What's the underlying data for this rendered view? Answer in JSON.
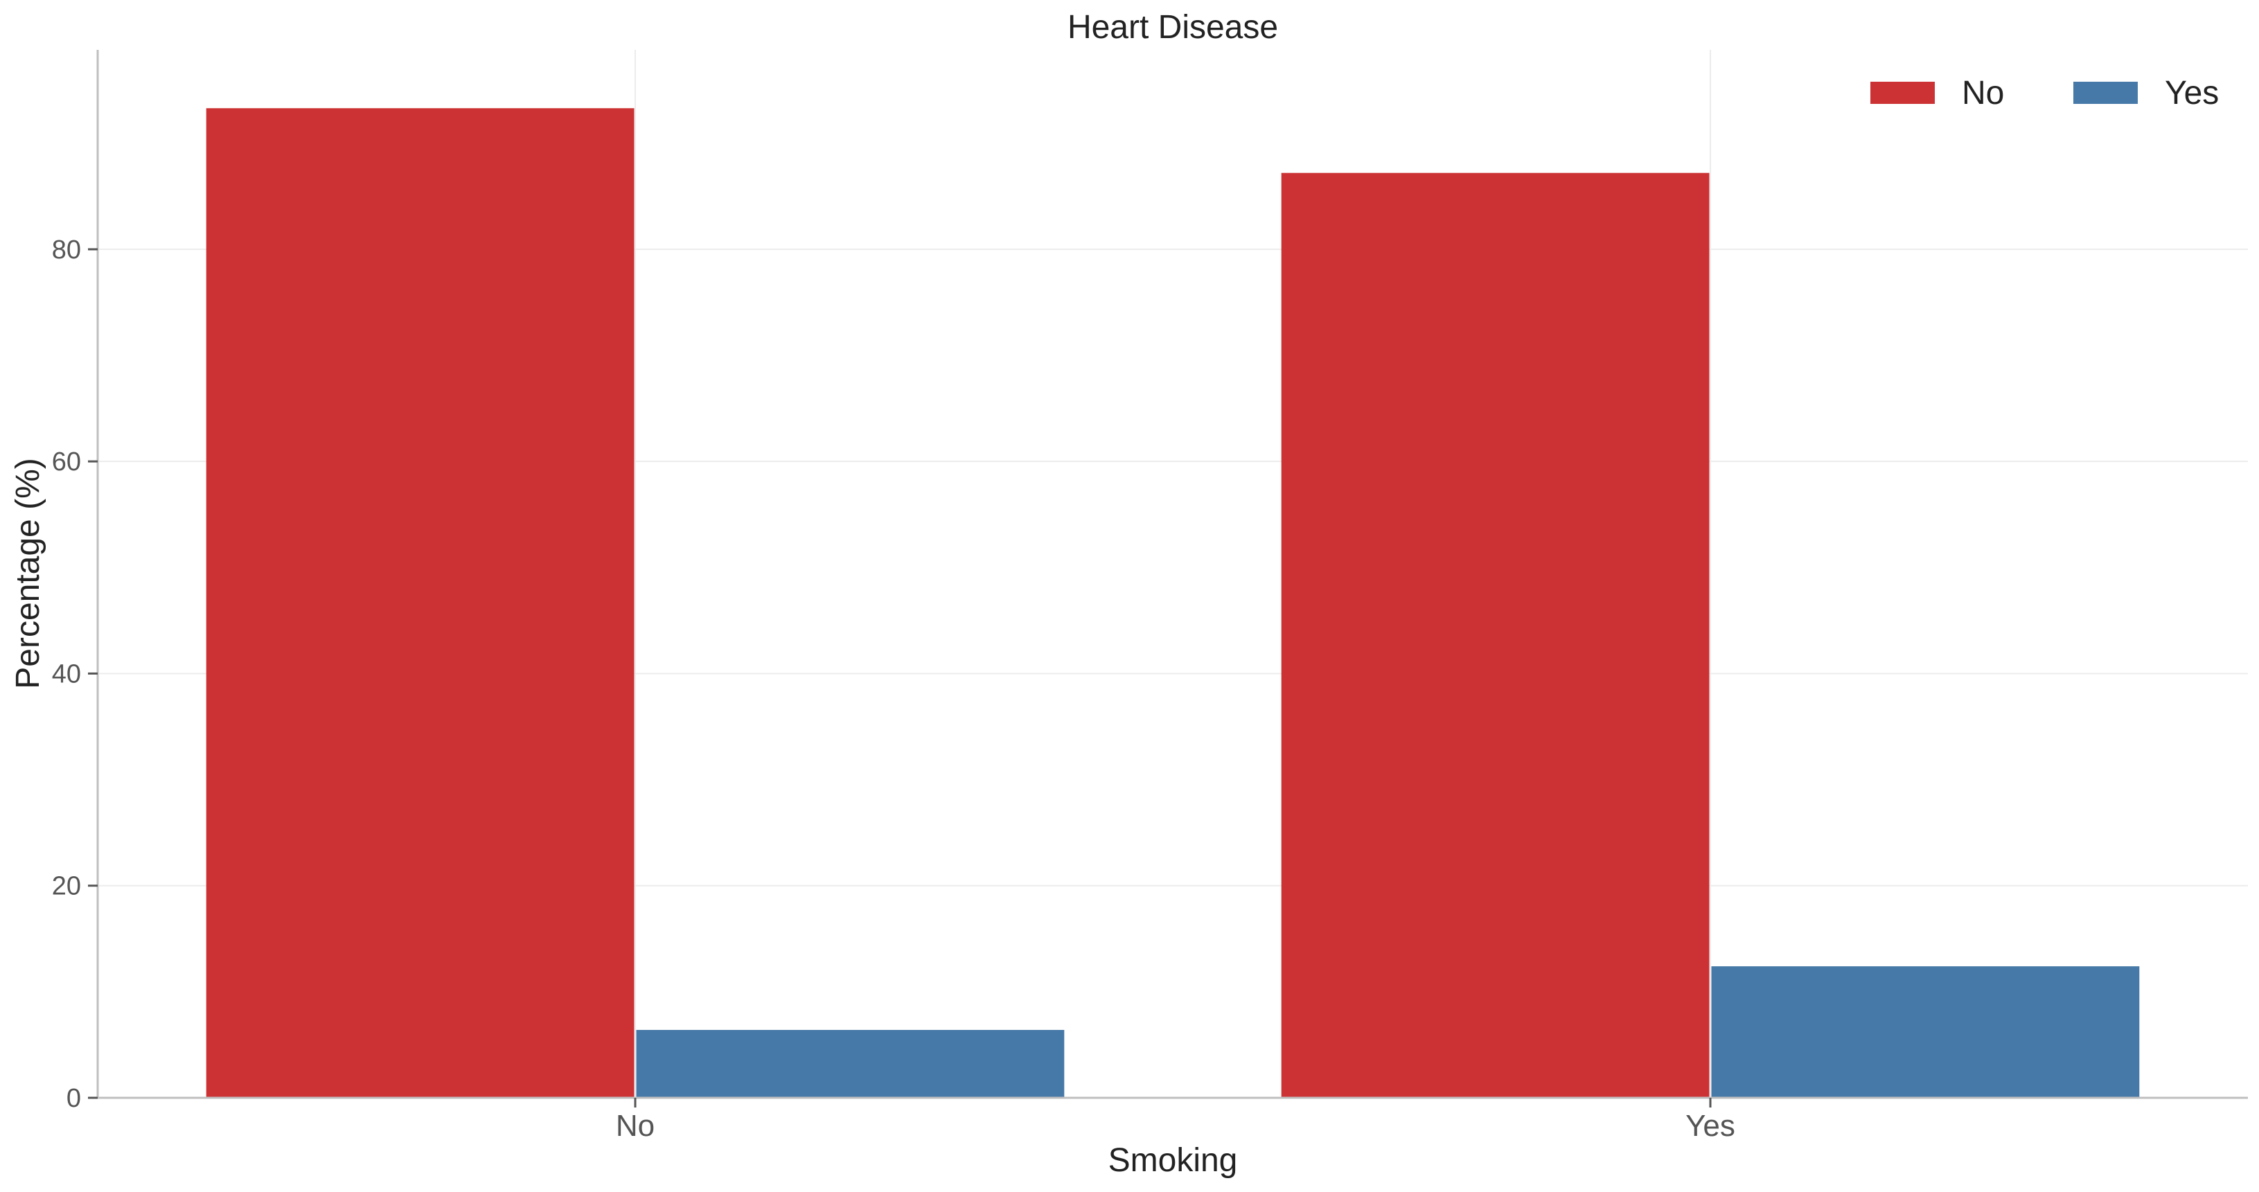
{
  "chart_data": {
    "type": "bar",
    "title": "Heart Disease",
    "xlabel": "Smoking",
    "ylabel": "Percentage (%)",
    "categories": [
      "No",
      "Yes"
    ],
    "series": [
      {
        "name": "No",
        "color": "#cc3234",
        "values": [
          93.3,
          87.2
        ]
      },
      {
        "name": "Yes",
        "color": "#4679a7",
        "values": [
          6.4,
          12.4
        ]
      }
    ],
    "ylim": [
      0,
      98.8
    ],
    "yticks": [
      0,
      20,
      40,
      60,
      80
    ],
    "grid": true,
    "legend": {
      "position": "top-right",
      "columns": 2
    }
  }
}
